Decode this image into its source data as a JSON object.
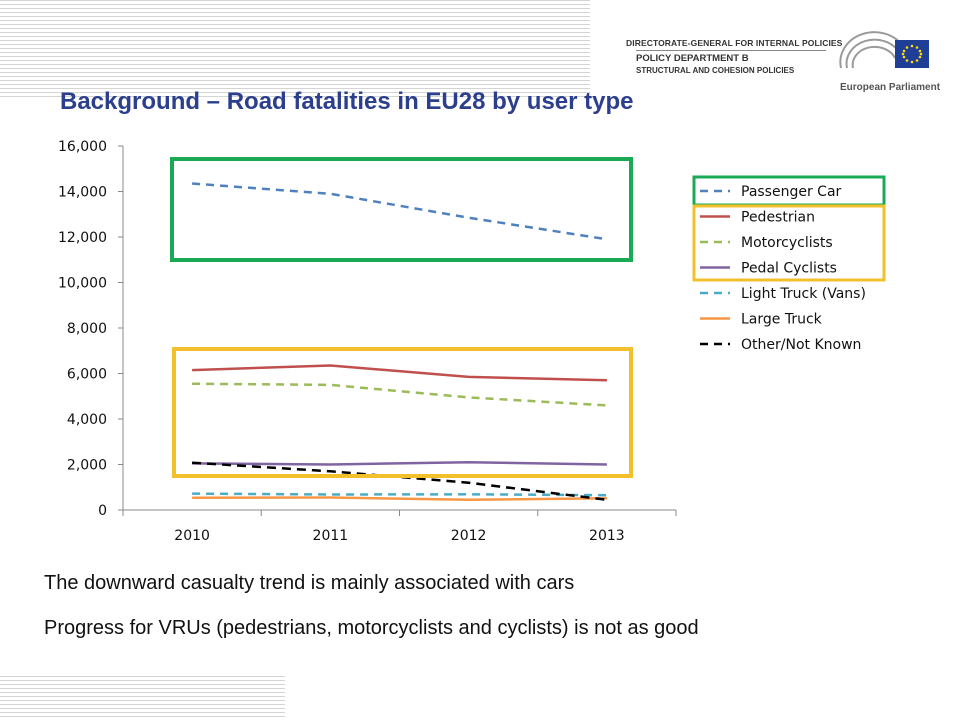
{
  "header": {
    "dept_line1": "DIRECTORATE-GENERAL FOR INTERNAL POLICIES",
    "dept_line2": "POLICY DEPARTMENT B",
    "dept_line3": "STRUCTURAL AND COHESION POLICIES",
    "logo_label": "European Parliament"
  },
  "slide": {
    "title": "Background – Road fatalities in EU28 by user type",
    "bullet_1": "The downward casualty trend is mainly associated with cars",
    "bullet_2": "Progress for VRUs (pedestrians, motorcyclists and cyclists) is not as good"
  },
  "colors": {
    "title": "#2b3f8c",
    "highlight_green": "#1aaa55",
    "highlight_yellow": "#f2c02c",
    "logo_blue": "#1e3f95",
    "logo_star": "#ffdd00"
  },
  "chart_data": {
    "type": "line",
    "categories": [
      "2010",
      "2011",
      "2012",
      "2013"
    ],
    "ylim": [
      0,
      16000
    ],
    "yticks": [
      "0",
      "2,000",
      "4,000",
      "6,000",
      "8,000",
      "10,000",
      "12,000",
      "14,000",
      "16,000"
    ],
    "grid": false,
    "legend_position": "right",
    "series": [
      {
        "name": "Passenger Car",
        "values": [
          14350,
          13900,
          12850,
          11900
        ],
        "color": "#4f81bd",
        "dash": "dashed"
      },
      {
        "name": "Pedestrian",
        "values": [
          6150,
          6350,
          5850,
          5700
        ],
        "color": "#c0504d",
        "dash": "solid"
      },
      {
        "name": "Motorcyclists",
        "values": [
          5550,
          5500,
          4950,
          4600
        ],
        "color": "#9bbb59",
        "dash": "dashed"
      },
      {
        "name": "Pedal Cyclists",
        "values": [
          2050,
          2000,
          2100,
          2000
        ],
        "color": "#8064a2",
        "dash": "solid"
      },
      {
        "name": "Light Truck (Vans)",
        "values": [
          720,
          680,
          690,
          650
        ],
        "color": "#4bacc6",
        "dash": "dashed"
      },
      {
        "name": "Large Truck",
        "values": [
          540,
          550,
          450,
          520
        ],
        "color": "#f79646",
        "dash": "solid"
      },
      {
        "name": "Other/Not Known",
        "values": [
          2080,
          1700,
          1200,
          450
        ],
        "color": "#000000",
        "dash": "dashed"
      }
    ]
  }
}
